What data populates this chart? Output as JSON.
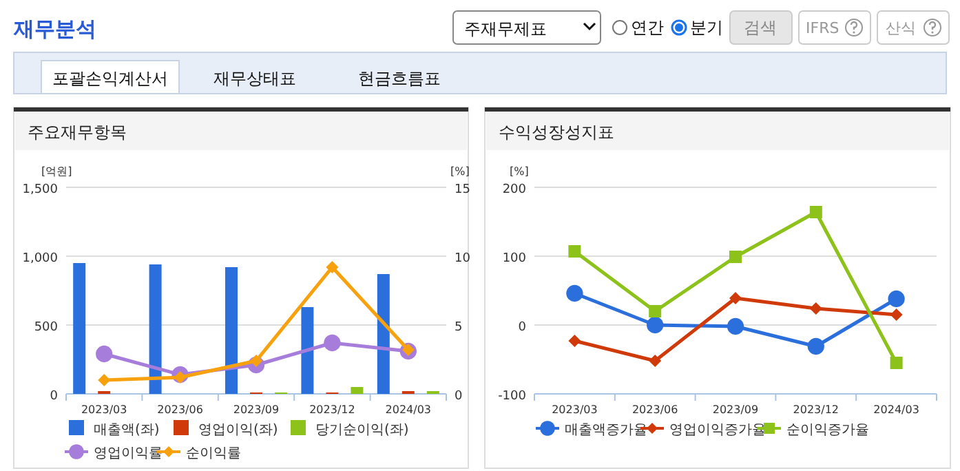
{
  "chart_data": [
    {
      "type": "other",
      "annotations": [
        "재무분석",
        "주재무제표",
        "연간",
        "분기",
        "검색",
        "IFRS",
        "산식",
        "포괄손익계산서",
        "재무상태표",
        "현금흐름표"
      ]
    },
    {
      "type": "bar",
      "title": "주요재무항목",
      "ylabel": "[억원]",
      "y2label": "[%]",
      "categories": [
        "2023/03",
        "2023/06",
        "2023/09",
        "2023/12",
        "2024/03"
      ],
      "ylim": [
        0,
        1500
      ],
      "yticks": [
        0,
        500,
        {
          "value": 1000,
          "label": "1,000"
        },
        {
          "value": 1500,
          "label": "1,500"
        }
      ],
      "y2lim": [
        0,
        15
      ],
      "y2ticks": [
        0,
        5,
        10,
        15
      ],
      "grid": "y",
      "legend": "bottom",
      "series": [
        {
          "name": "매출액(좌)",
          "type": "bar",
          "color": "#2a6fdb",
          "values": [
            950,
            940,
            920,
            630,
            870
          ]
        },
        {
          "name": "영업이익(좌)",
          "type": "bar",
          "color": "#d03a0a",
          "values": [
            20,
            0,
            10,
            10,
            20
          ]
        },
        {
          "name": "당기순이익(좌)",
          "type": "bar",
          "color": "#8cc21a",
          "values": [
            0,
            0,
            10,
            50,
            20
          ]
        },
        {
          "name": "영업이익률",
          "type": "line",
          "axis": "y2",
          "marker": "circle",
          "color": "#a77ddb",
          "values": [
            2.9,
            1.4,
            2.1,
            3.7,
            3.1
          ]
        },
        {
          "name": "순이익률",
          "type": "line",
          "axis": "y2",
          "marker": "diamond",
          "color": "#f7a10e",
          "values": [
            1.0,
            1.2,
            2.4,
            9.2,
            3.2
          ]
        }
      ]
    },
    {
      "type": "line",
      "title": "수익성장성지표",
      "ylabel": "[%]",
      "categories": [
        "2023/03",
        "2023/06",
        "2023/09",
        "2023/12",
        "2024/03"
      ],
      "ylim": [
        -100,
        200
      ],
      "yticks": [
        -100,
        0,
        100,
        200
      ],
      "grid": "y",
      "legend": "bottom",
      "series": [
        {
          "name": "매출액증가율",
          "marker": "circle",
          "color": "#2a6fdb",
          "values": [
            46,
            0,
            -2,
            -31,
            38
          ]
        },
        {
          "name": "영업이익증가율",
          "marker": "diamond",
          "color": "#d03a0a",
          "values": [
            -23,
            -52,
            39,
            24,
            15
          ]
        },
        {
          "name": "순이익증가율",
          "marker": "square",
          "color": "#8cc21a",
          "values": [
            107,
            20,
            99,
            164,
            -55
          ]
        }
      ]
    }
  ]
}
